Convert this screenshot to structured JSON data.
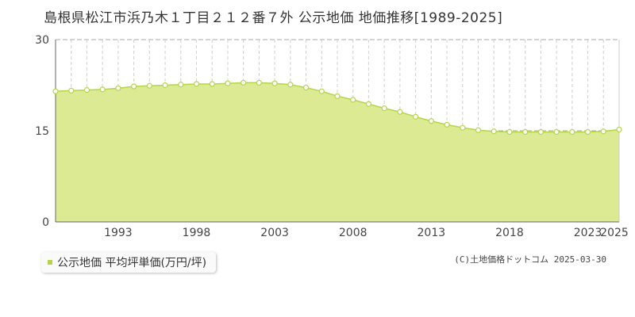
{
  "title": "島根県松江市浜乃木１丁目２１２番７外 公示地価 地価推移[1989-2025]",
  "legend": {
    "label": "公示地価 平均坪単価(万円/坪)"
  },
  "credit": "(C)土地価格ドットコム 2025-03-30",
  "colors": {
    "fill": "#dcea93",
    "line": "#b5d44a",
    "grid": "#bbbbbb",
    "point_fill": "#ffffff"
  },
  "chart_data": {
    "type": "area",
    "title": "島根県松江市浜乃木１丁目２１２番７外 公示地価 地価推移[1989-2025]",
    "xlabel": "",
    "ylabel": "",
    "ylim": [
      0,
      30
    ],
    "yticks": [
      0,
      15,
      30
    ],
    "xtick_labels": [
      "1993",
      "1998",
      "2003",
      "2008",
      "2013",
      "2018",
      "2023",
      "2025"
    ],
    "grid": true,
    "legend_position": "bottom-left",
    "series": [
      {
        "name": "公示地価 平均坪単価(万円/坪)",
        "x": [
          1989,
          1990,
          1991,
          1992,
          1993,
          1994,
          1995,
          1996,
          1997,
          1998,
          1999,
          2000,
          2001,
          2002,
          2003,
          2004,
          2005,
          2006,
          2007,
          2008,
          2009,
          2010,
          2011,
          2012,
          2013,
          2014,
          2015,
          2016,
          2017,
          2018,
          2019,
          2020,
          2021,
          2022,
          2023,
          2024,
          2025
        ],
        "values": [
          21.5,
          21.6,
          21.7,
          21.8,
          22.0,
          22.3,
          22.4,
          22.5,
          22.6,
          22.7,
          22.7,
          22.8,
          22.9,
          22.9,
          22.8,
          22.6,
          22.1,
          21.5,
          20.7,
          20.1,
          19.4,
          18.7,
          18.1,
          17.3,
          16.6,
          16.0,
          15.5,
          15.1,
          14.9,
          14.8,
          14.8,
          14.8,
          14.8,
          14.8,
          14.8,
          14.9,
          15.2
        ]
      }
    ]
  }
}
